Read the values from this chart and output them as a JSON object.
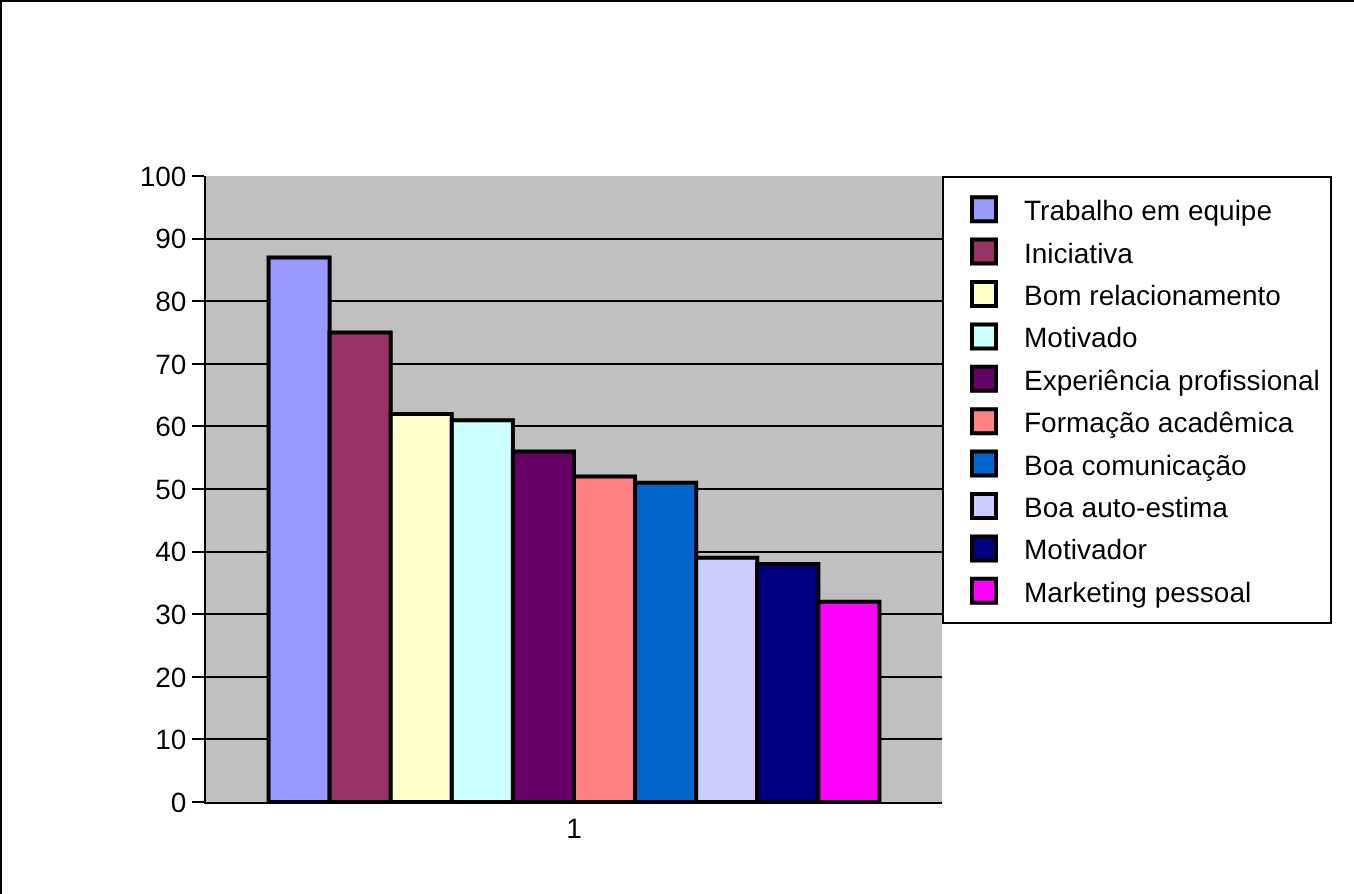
{
  "chart_data": {
    "type": "bar",
    "categories": [
      "1"
    ],
    "series": [
      {
        "name": "Trabalho em equipe",
        "color": "#9999ff",
        "values": [
          87
        ]
      },
      {
        "name": "Iniciativa",
        "color": "#993366",
        "values": [
          75
        ]
      },
      {
        "name": "Bom relacionamento",
        "color": "#ffffcc",
        "values": [
          62
        ]
      },
      {
        "name": "Motivado",
        "color": "#ccffff",
        "values": [
          61
        ]
      },
      {
        "name": "Experiência profissional",
        "color": "#660066",
        "values": [
          56
        ]
      },
      {
        "name": "Formação acadêmica",
        "color": "#ff8080",
        "values": [
          52
        ]
      },
      {
        "name": "Boa comunicação",
        "color": "#0066cc",
        "values": [
          51
        ]
      },
      {
        "name": "Boa auto-estima",
        "color": "#ccccff",
        "values": [
          39
        ]
      },
      {
        "name": "Motivador",
        "color": "#000080",
        "values": [
          38
        ]
      },
      {
        "name": "Marketing pessoal",
        "color": "#ff00ff",
        "values": [
          32
        ]
      }
    ],
    "ylim": [
      0,
      100
    ],
    "yticks": [
      0,
      10,
      20,
      30,
      40,
      50,
      60,
      70,
      80,
      90,
      100
    ],
    "grid": "y",
    "legend": "right"
  }
}
